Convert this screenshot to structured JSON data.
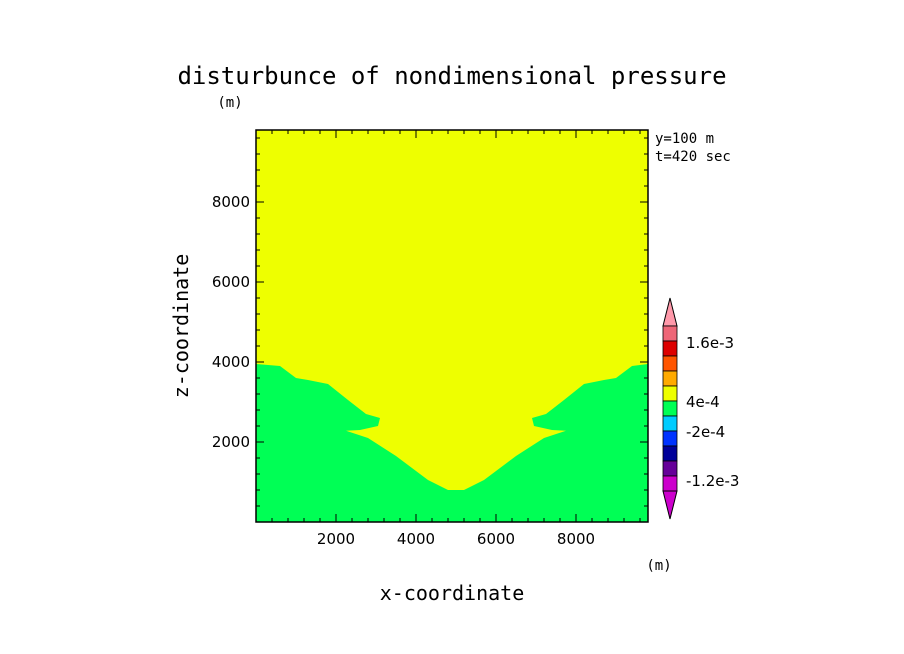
{
  "chart_data": {
    "type": "contour",
    "title": "disturbunce of nondimensional pressure",
    "xlabel": "x-coordinate",
    "ylabel": "z-coordinate",
    "y_unit": "(m)",
    "colorbar_unit": "(m)",
    "annotations": [
      "y=100 m",
      "t=420 sec"
    ],
    "xlim": [
      0,
      9800
    ],
    "ylim": [
      0,
      9800
    ],
    "xticks": [
      2000,
      4000,
      6000,
      8000
    ],
    "yticks": [
      2000,
      4000,
      6000,
      8000
    ],
    "xtick_labels": [
      "2000",
      "4000",
      "6000",
      "8000"
    ],
    "ytick_labels": [
      "2000",
      "4000",
      "6000",
      "8000"
    ],
    "regions": [
      {
        "level": "-2e-4 to 4e-4",
        "color": "#00ff55",
        "boundary": [
          [
            0,
            3950
          ],
          [
            600,
            3900
          ],
          [
            1000,
            3600
          ],
          [
            1300,
            3550
          ],
          [
            1800,
            3450
          ],
          [
            2300,
            3050
          ],
          [
            2750,
            2700
          ],
          [
            3100,
            2600
          ],
          [
            3050,
            2400
          ],
          [
            2600,
            2300
          ],
          [
            2250,
            2280
          ],
          [
            2800,
            2100
          ],
          [
            3500,
            1650
          ],
          [
            4300,
            1050
          ],
          [
            4800,
            800
          ],
          [
            5200,
            800
          ],
          [
            5700,
            1050
          ],
          [
            6500,
            1650
          ],
          [
            7200,
            2100
          ],
          [
            7750,
            2280
          ],
          [
            7400,
            2300
          ],
          [
            6950,
            2400
          ],
          [
            6900,
            2600
          ],
          [
            7250,
            2700
          ],
          [
            7700,
            3050
          ],
          [
            8200,
            3450
          ],
          [
            8700,
            3550
          ],
          [
            9000,
            3600
          ],
          [
            9400,
            3900
          ],
          [
            9800,
            3950
          ],
          [
            9800,
            0
          ],
          [
            0,
            0
          ]
        ]
      },
      {
        "level": "4e-4 to 8e-4",
        "color": "#eeff00",
        "boundary": "remainder"
      }
    ],
    "colorbar": {
      "colors": [
        "#ff99aa",
        "#ee6677",
        "#dd0000",
        "#ff5500",
        "#ffaa00",
        "#eeff00",
        "#00ff55",
        "#00ccff",
        "#0033ff",
        "#000099",
        "#660099",
        "#cc00cc"
      ],
      "labels": [
        "1.6e-3",
        "4e-4",
        "-2e-4",
        "-1.2e-3"
      ]
    }
  }
}
